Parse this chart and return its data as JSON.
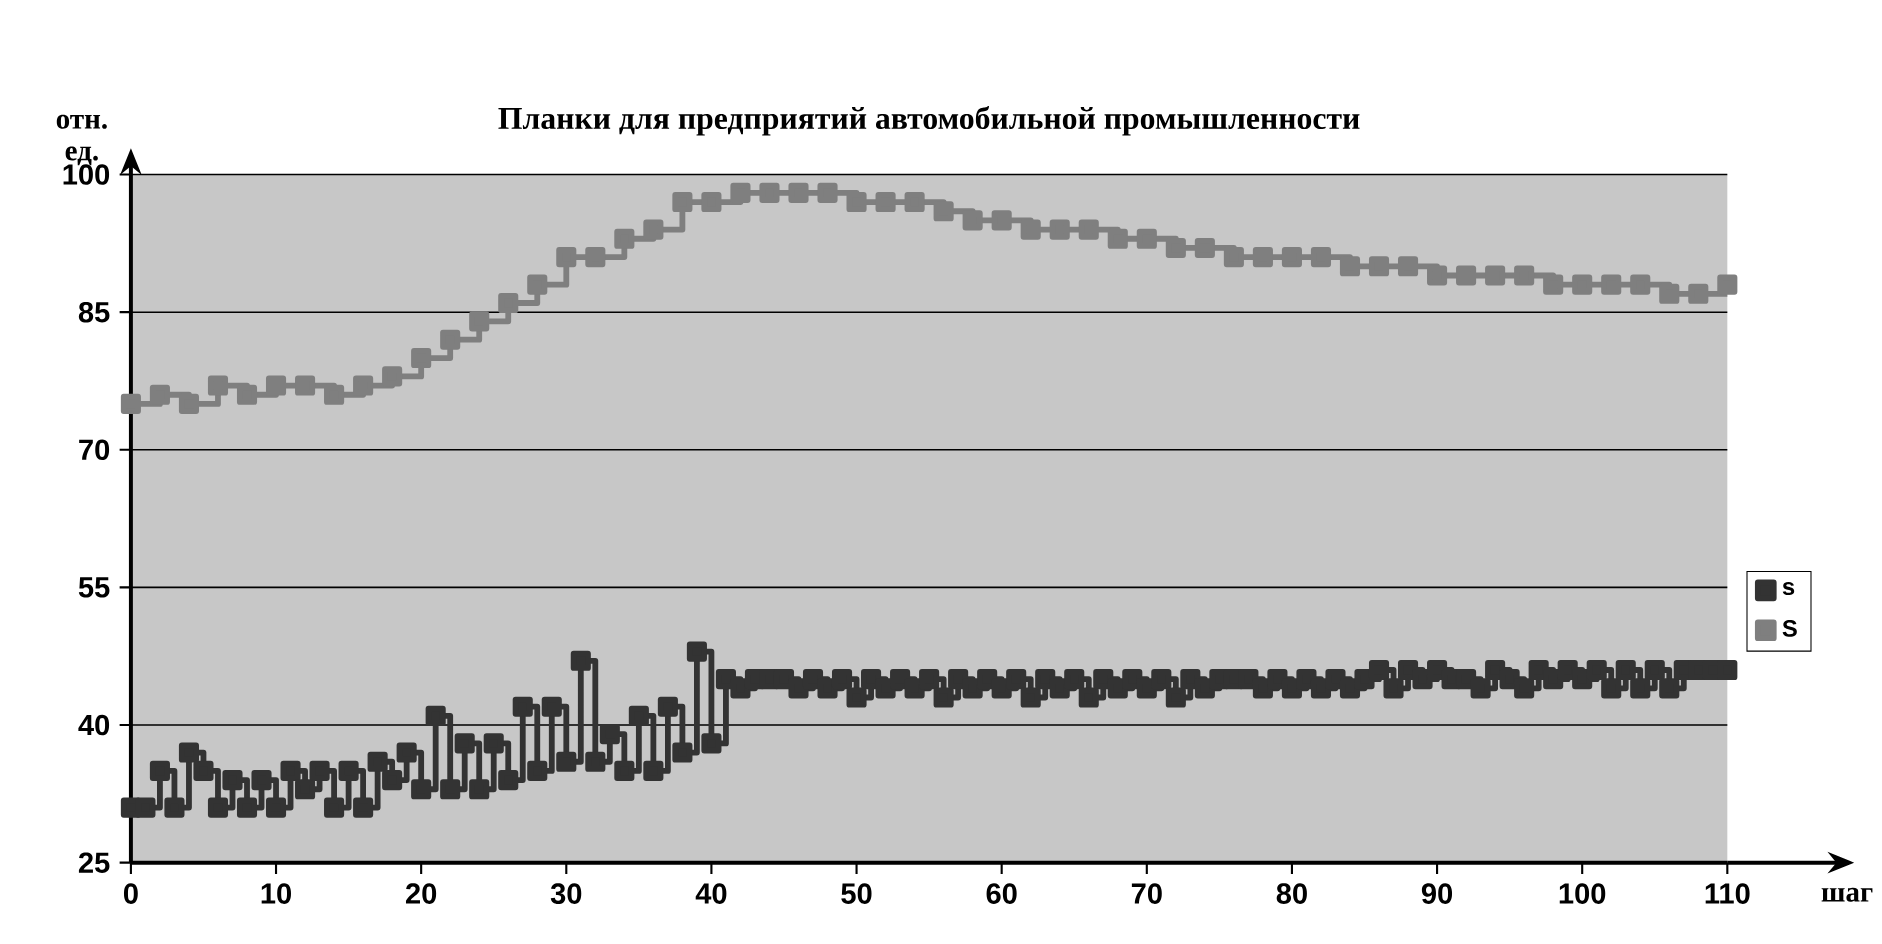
{
  "chart_data": {
    "type": "step",
    "title": "Планки для предприятий автомобильной промышленности",
    "xlabel": "шаг",
    "ylabel": "отн. ед.",
    "xlim": [
      0,
      110
    ],
    "xticks": [
      0,
      10,
      20,
      30,
      40,
      50,
      60,
      70,
      80,
      90,
      100,
      110
    ],
    "ylim": [
      25,
      100
    ],
    "yticks": [
      25,
      40,
      55,
      70,
      85,
      100
    ],
    "grid": "y",
    "legend": "right",
    "marker": "square",
    "series": [
      {
        "name": "s",
        "color": "#333333",
        "x": [
          0,
          1,
          2,
          3,
          4,
          5,
          6,
          7,
          8,
          9,
          10,
          11,
          12,
          13,
          14,
          15,
          16,
          17,
          18,
          19,
          20,
          21,
          22,
          23,
          24,
          25,
          26,
          27,
          28,
          29,
          30,
          31,
          32,
          33,
          34,
          35,
          36,
          37,
          38,
          39,
          40,
          41,
          42,
          43,
          44,
          45,
          46,
          47,
          48,
          49,
          50,
          51,
          52,
          53,
          54,
          55,
          56,
          57,
          58,
          59,
          60,
          61,
          62,
          63,
          64,
          65,
          66,
          67,
          68,
          69,
          70,
          71,
          72,
          73,
          74,
          75,
          76,
          77,
          78,
          79,
          80,
          81,
          82,
          83,
          84,
          85,
          86,
          87,
          88,
          89,
          90,
          91,
          92,
          93,
          94,
          95,
          96,
          97,
          98,
          99,
          100,
          101,
          102,
          103,
          104,
          105,
          106,
          107,
          108,
          109,
          110
        ],
        "values": [
          31,
          31,
          35,
          31,
          37,
          35,
          31,
          34,
          31,
          34,
          31,
          35,
          33,
          35,
          31,
          35,
          31,
          36,
          34,
          37,
          33,
          41,
          33,
          38,
          33,
          38,
          34,
          42,
          35,
          42,
          36,
          47,
          36,
          39,
          35,
          41,
          35,
          42,
          37,
          48,
          38,
          45,
          44,
          45,
          45,
          45,
          44,
          45,
          44,
          45,
          43,
          45,
          44,
          45,
          44,
          45,
          43,
          45,
          44,
          45,
          44,
          45,
          43,
          45,
          44,
          45,
          43,
          45,
          44,
          45,
          44,
          45,
          43,
          45,
          44,
          45,
          45,
          45,
          44,
          45,
          44,
          45,
          44,
          45,
          44,
          45,
          46,
          44,
          46,
          45,
          46,
          45,
          45,
          44,
          46,
          45,
          44,
          46,
          45,
          46,
          45,
          46,
          44,
          46,
          44,
          46,
          44,
          46,
          46,
          46,
          46
        ]
      },
      {
        "name": "S",
        "color": "#7f7f7f",
        "x": [
          0,
          2,
          4,
          6,
          8,
          10,
          12,
          14,
          16,
          18,
          20,
          22,
          24,
          26,
          28,
          30,
          32,
          34,
          36,
          38,
          40,
          42,
          44,
          46,
          48,
          50,
          52,
          54,
          56,
          58,
          60,
          62,
          64,
          66,
          68,
          70,
          72,
          74,
          76,
          78,
          80,
          82,
          84,
          86,
          88,
          90,
          92,
          94,
          96,
          98,
          100,
          102,
          104,
          106,
          108,
          110
        ],
        "values": [
          75,
          76,
          75,
          77,
          76,
          77,
          77,
          76,
          77,
          78,
          80,
          82,
          84,
          86,
          88,
          91,
          91,
          93,
          94,
          97,
          97,
          98,
          98,
          98,
          98,
          97,
          97,
          97,
          96,
          95,
          95,
          94,
          94,
          94,
          93,
          93,
          92,
          92,
          91,
          91,
          91,
          91,
          90,
          90,
          90,
          89,
          89,
          89,
          89,
          88,
          88,
          88,
          88,
          87,
          87,
          88
        ]
      }
    ]
  }
}
